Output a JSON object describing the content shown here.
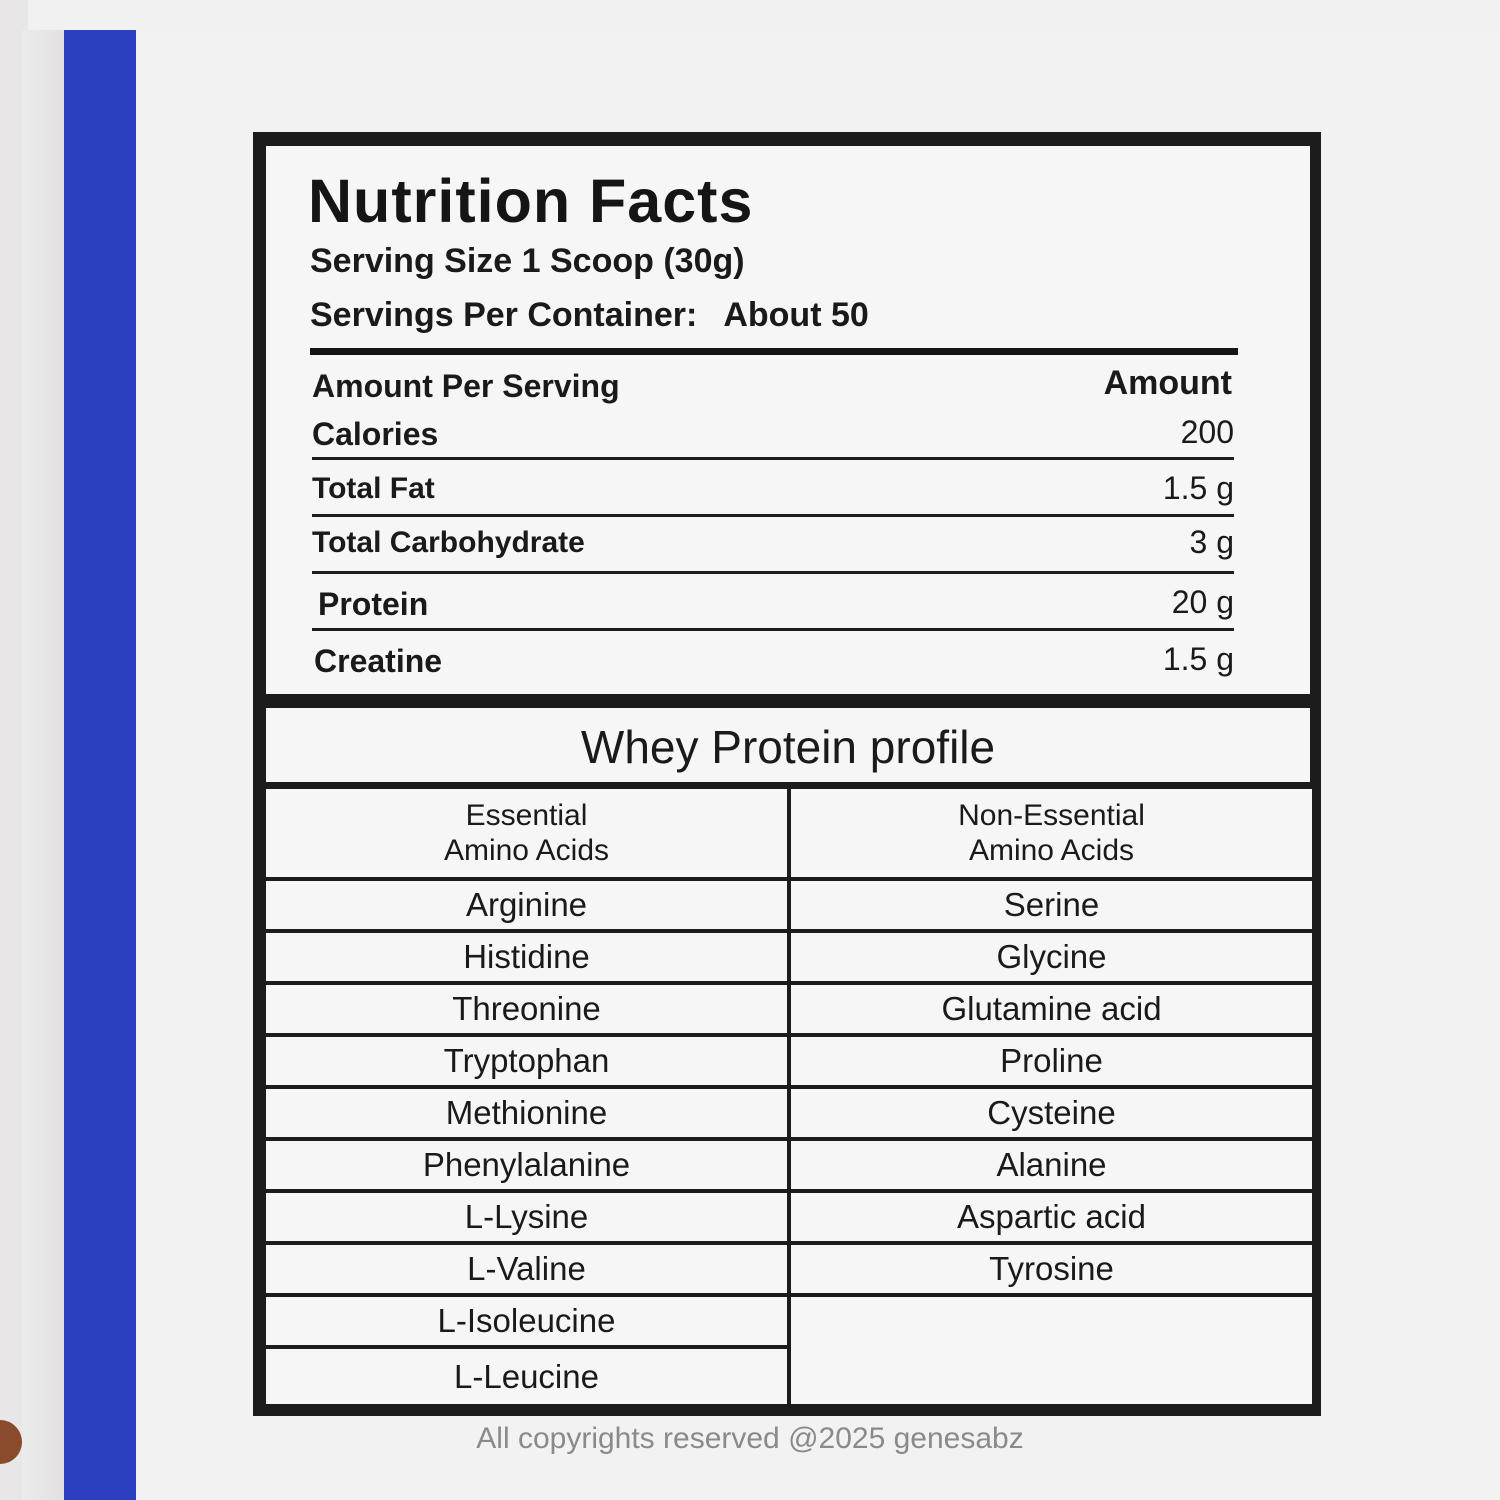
{
  "nutrition": {
    "title": "Nutrition Facts",
    "serving_size": "Serving Size 1 Scoop (30g)",
    "servings_per_container_label": "Servings Per Container:",
    "servings_per_container_value": "About  50",
    "amount_per_serving": "Amount Per Serving",
    "amount_header": "Amount",
    "rows": [
      {
        "label": "Calories",
        "value": "200"
      },
      {
        "label": "Total Fat",
        "value": "1.5 g"
      },
      {
        "label": "Total Carbohydrate",
        "value": "3 g"
      },
      {
        "label": "Protein",
        "value": "20 g"
      },
      {
        "label": "Creatine",
        "value": "1.5 g"
      }
    ]
  },
  "profile": {
    "title": "Whey Protein  profile",
    "essential_header_line1": "Essential",
    "essential_header_line2": "Amino Acids",
    "nonessential_header_line1": "Non-Essential",
    "nonessential_header_line2": "Amino Acids",
    "essential": [
      "Arginine",
      "Histidine",
      "Threonine",
      "Tryptophan",
      "Methionine",
      "Phenylalanine",
      "L-Lysine",
      "L-Valine",
      "L-Isoleucine",
      "L-Leucine"
    ],
    "nonessential": [
      "Serine",
      "Glycine",
      "Glutamine acid",
      "Proline",
      "Cysteine",
      "Alanine",
      "Aspartic acid",
      "Tyrosine"
    ]
  },
  "footer": "All copyrights reserved @2025 genesabz",
  "colors": {
    "stripe": "#2c3fbf",
    "label_border": "#1c1c1c",
    "paper": "#f2f2f2"
  }
}
